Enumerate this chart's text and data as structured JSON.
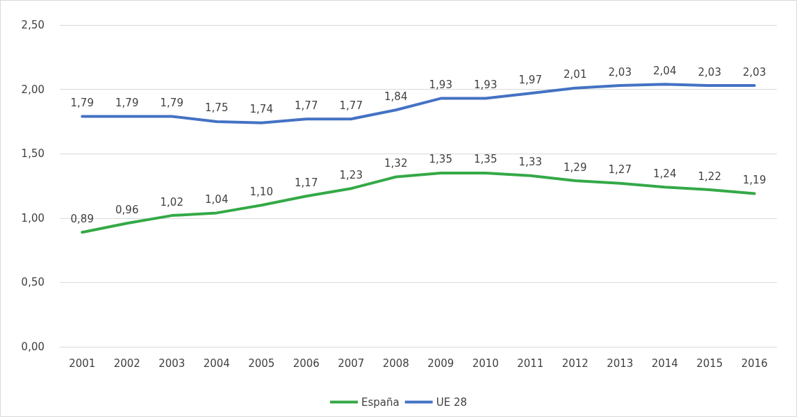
{
  "chart_data": {
    "type": "line",
    "categories": [
      "2001",
      "2002",
      "2003",
      "2004",
      "2005",
      "2006",
      "2007",
      "2008",
      "2009",
      "2010",
      "2011",
      "2012",
      "2013",
      "2014",
      "2015",
      "2016"
    ],
    "series": [
      {
        "name": "España",
        "color": "#34a947",
        "values": [
          0.89,
          0.96,
          1.02,
          1.04,
          1.1,
          1.17,
          1.23,
          1.32,
          1.35,
          1.35,
          1.33,
          1.29,
          1.27,
          1.24,
          1.22,
          1.19
        ],
        "value_labels": [
          "0,89",
          "0,96",
          "1,02",
          "1,04",
          "1,10",
          "1,17",
          "1,23",
          "1,32",
          "1,35",
          "1,35",
          "1,33",
          "1,29",
          "1,27",
          "1,24",
          "1,22",
          "1,19"
        ]
      },
      {
        "name": "UE 28",
        "color": "#4472c4",
        "values": [
          1.79,
          1.79,
          1.79,
          1.75,
          1.74,
          1.77,
          1.77,
          1.84,
          1.93,
          1.93,
          1.97,
          2.01,
          2.03,
          2.04,
          2.03,
          2.03
        ],
        "value_labels": [
          "1,79",
          "1,79",
          "1,79",
          "1,75",
          "1,74",
          "1,77",
          "1,77",
          "1,84",
          "1,93",
          "1,93",
          "1,97",
          "2,01",
          "2,03",
          "2,04",
          "2,03",
          "2,03"
        ]
      }
    ],
    "ylim": [
      0,
      2.5
    ],
    "yticks": [
      {
        "value": 0,
        "label": "0,00"
      },
      {
        "value": 0.5,
        "label": "0,50"
      },
      {
        "value": 1,
        "label": "1,00"
      },
      {
        "value": 1.5,
        "label": "1,50"
      },
      {
        "value": 2,
        "label": "2,00"
      },
      {
        "value": 2.5,
        "label": "2,50"
      }
    ],
    "grid": "y",
    "legend": "bottom",
    "marker": "none",
    "line_style": "solid"
  }
}
